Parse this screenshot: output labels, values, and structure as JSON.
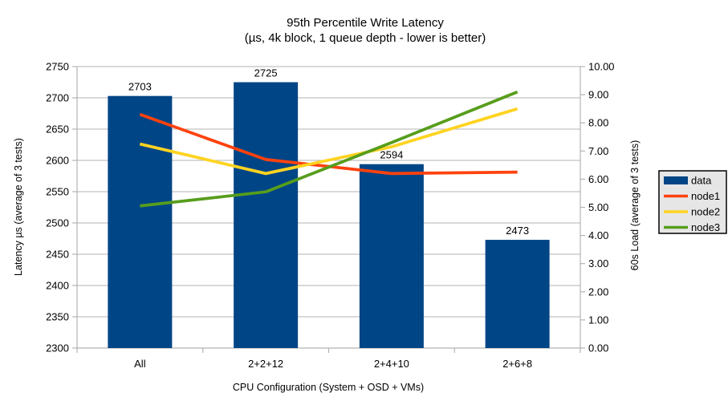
{
  "page": {
    "background": "#ffffff"
  },
  "chart_data": {
    "type": "bar+line",
    "title": "95th Percentile Write Latency",
    "subtitle": "(µs, 4k block, 1 queue depth - lower is better)",
    "xlabel": "CPU Configuration (System + OSD + VMs)",
    "categories": [
      "All",
      "2+2+12",
      "2+4+10",
      "2+6+8"
    ],
    "bar_series": {
      "name": "data",
      "axis": "left",
      "color": "#004586",
      "values": [
        2703,
        2725,
        2594,
        2473
      ],
      "data_labels": [
        "2703",
        "2725",
        "2594",
        "2473"
      ]
    },
    "line_series": [
      {
        "name": "node1",
        "axis": "right",
        "color": "#FF420E",
        "values": [
          8.3,
          6.7,
          6.2,
          6.25
        ]
      },
      {
        "name": "node2",
        "axis": "right",
        "color": "#FFD320",
        "values": [
          7.25,
          6.2,
          7.15,
          8.5
        ]
      },
      {
        "name": "node3",
        "axis": "right",
        "color": "#579D1C",
        "values": [
          5.05,
          5.55,
          7.3,
          9.1
        ]
      }
    ],
    "left_axis": {
      "label": "Latency µs (average of 3 tests)",
      "min": 2300,
      "max": 2750,
      "step": 50,
      "tick_labels": [
        "2300",
        "2350",
        "2400",
        "2450",
        "2500",
        "2550",
        "2600",
        "2650",
        "2700",
        "2750"
      ]
    },
    "right_axis": {
      "label": "60s Load (average of 3 tests)",
      "min": 0,
      "max": 10,
      "step": 1,
      "tick_labels": [
        "0.00",
        "1.00",
        "2.00",
        "3.00",
        "4.00",
        "5.00",
        "6.00",
        "7.00",
        "8.00",
        "9.00",
        "10.00"
      ]
    },
    "legend": {
      "position": "right",
      "entries": [
        "data",
        "node1",
        "node2",
        "node3"
      ],
      "background": "#e6e6e6",
      "border_color": "#000000"
    },
    "grid": {
      "horizontal": true,
      "color": "#b3b3b3",
      "axis_color": "#b3b3b3"
    }
  }
}
